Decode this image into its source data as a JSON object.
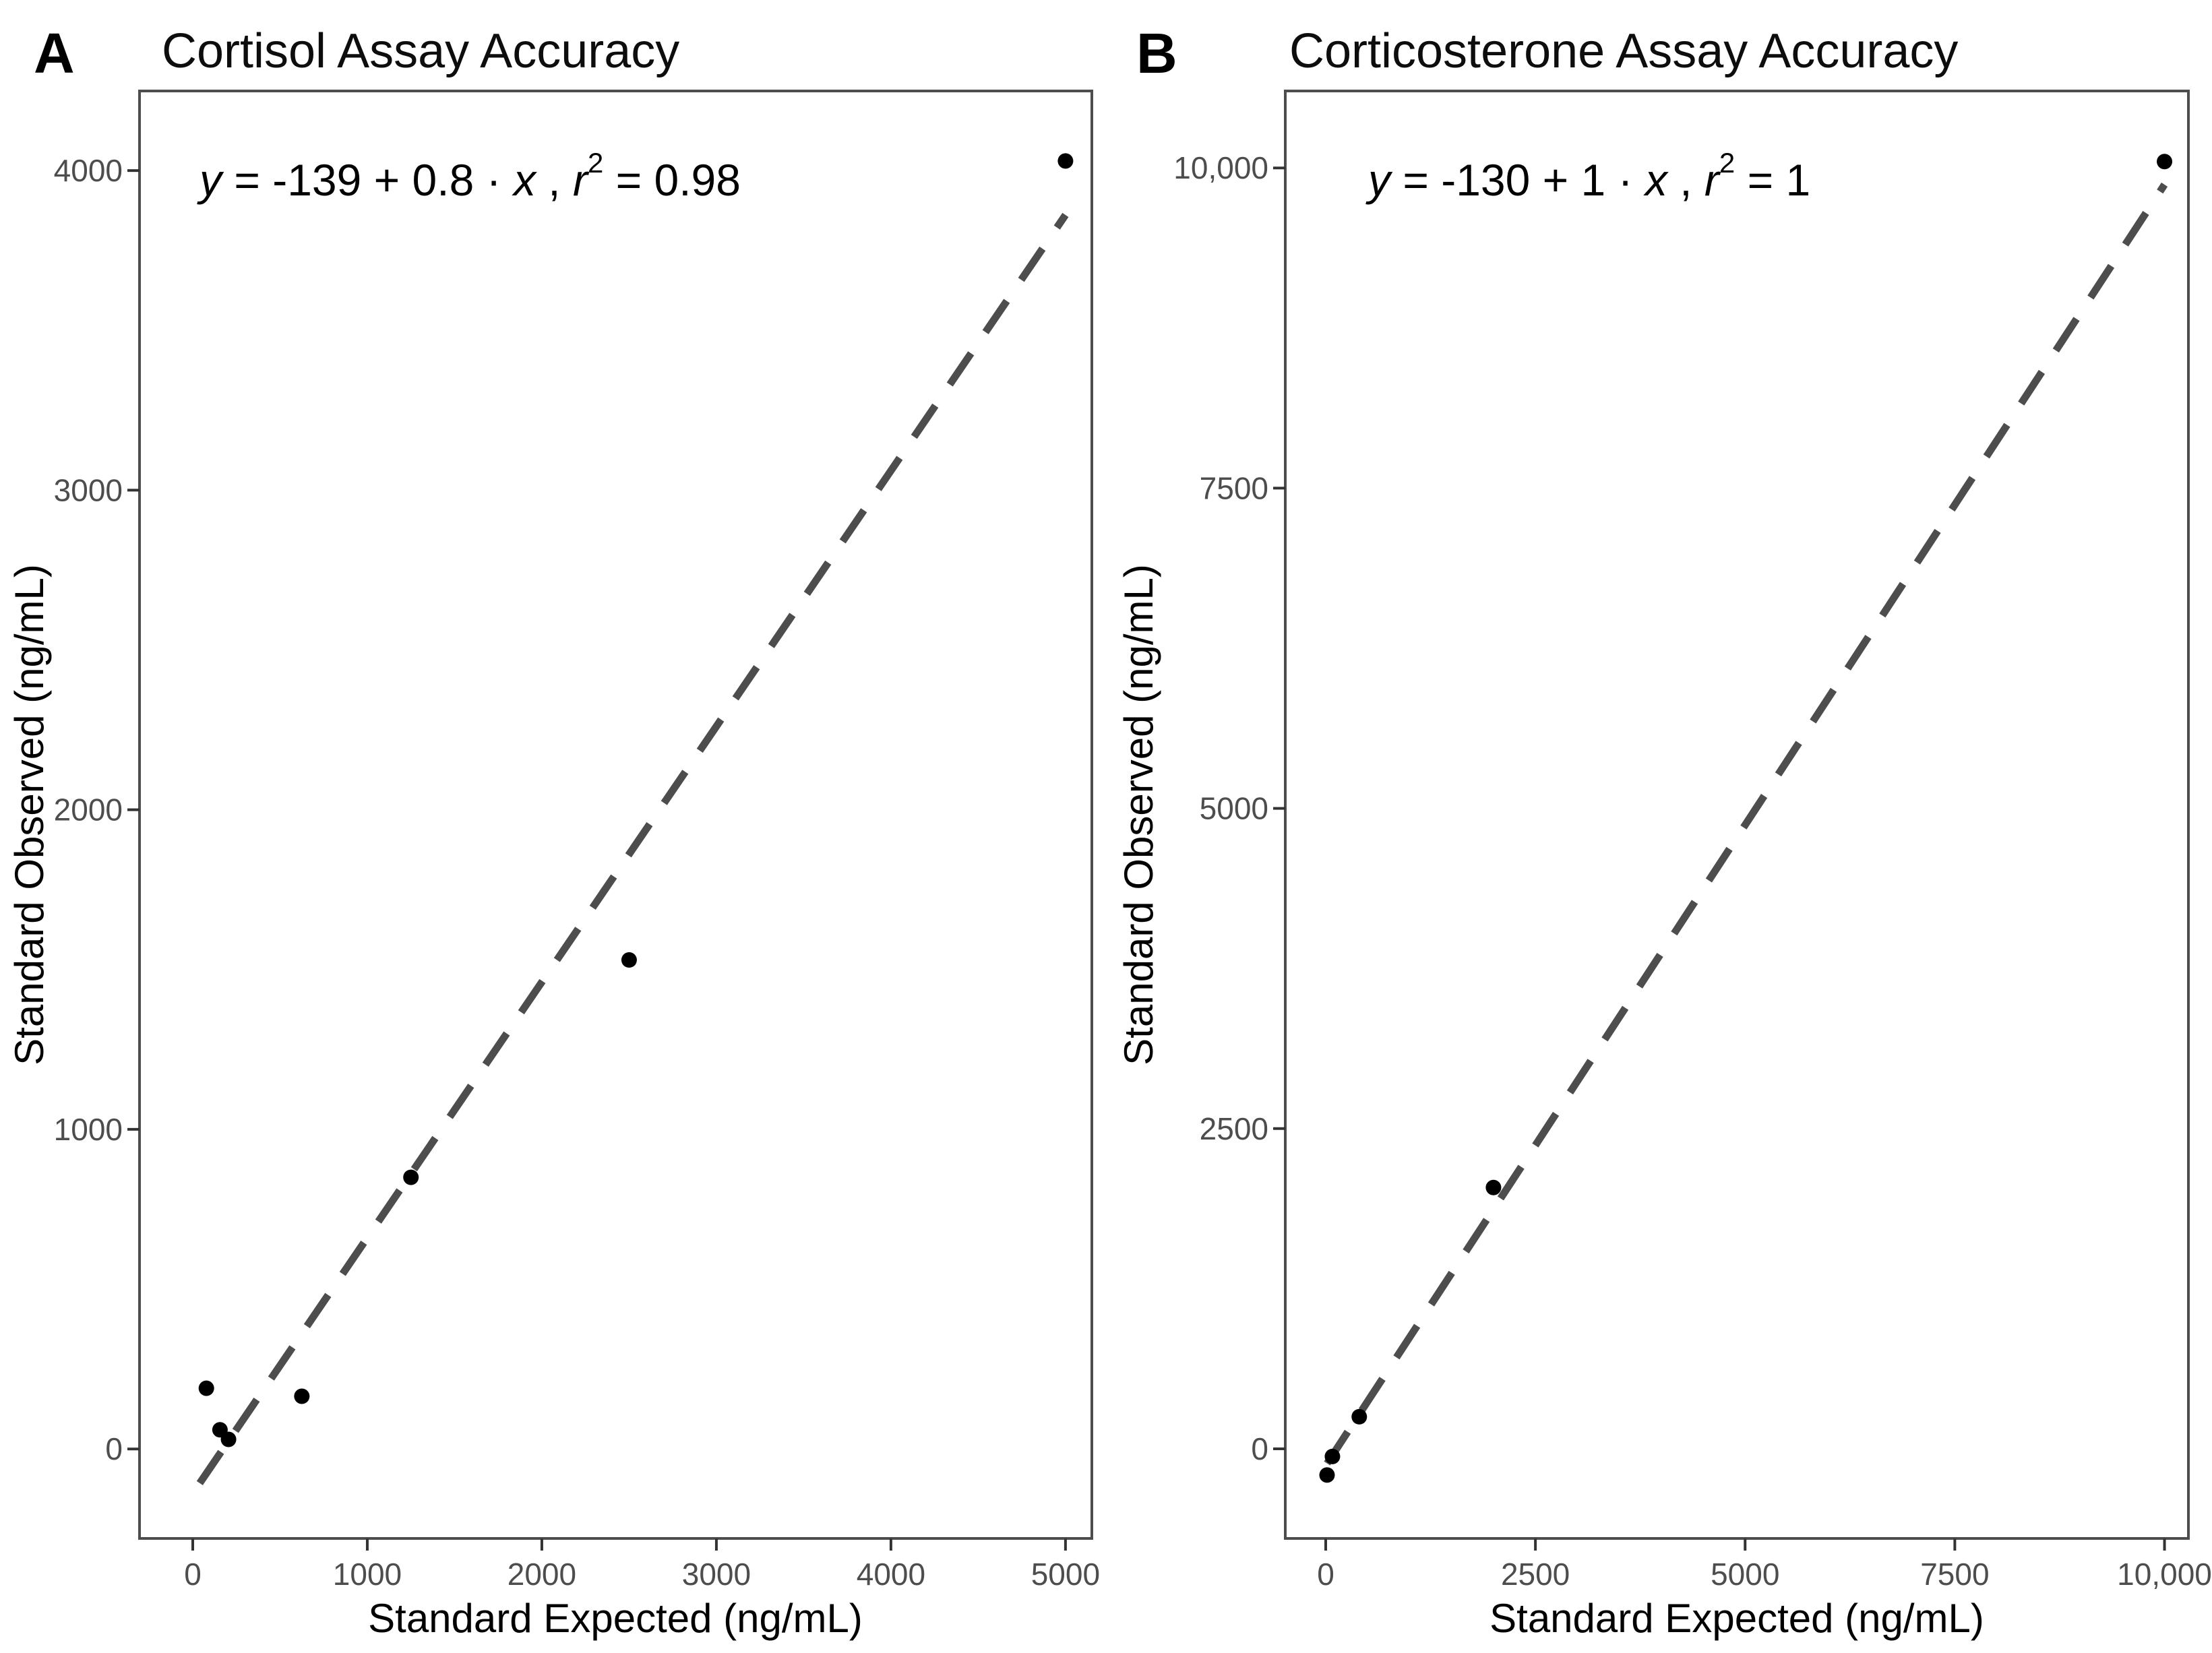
{
  "style": {
    "background": "#ffffff",
    "point_color": "#000000",
    "regression_line_color": "#4d4d4d",
    "panel_border_color": "#4d4d4d",
    "tick_mark_color": "#333333",
    "tick_label_color": "#4d4d4d",
    "text_color": "#000000"
  },
  "chart_data": [
    {
      "type": "scatter",
      "tag": "A",
      "title": "Cortisol Assay Accuracy",
      "xlabel": "Standard Expected (ng/mL)",
      "ylabel": "Standard Observed (ng/mL)",
      "equation": {
        "full_text": "y = -139 + 0.8 · x ,  r² = 0.98",
        "segments": [
          {
            "t": "y",
            "italic": true
          },
          {
            "t": " = -139 + 0.8 · "
          },
          {
            "t": "x",
            "italic": true
          },
          {
            "t": " ,  "
          },
          {
            "t": "r",
            "italic": true
          },
          {
            "t": "2",
            "sup": true
          },
          {
            "t": " = 0.98"
          }
        ]
      },
      "points": [
        {
          "x": 78,
          "y": 190
        },
        {
          "x": 156,
          "y": 60
        },
        {
          "x": 205,
          "y": 30
        },
        {
          "x": 625,
          "y": 165
        },
        {
          "x": 1250,
          "y": 850
        },
        {
          "x": 2500,
          "y": 1530
        },
        {
          "x": 5000,
          "y": 4030
        }
      ],
      "fit_line": {
        "intercept": -139,
        "slope": 0.8,
        "x_start": 40,
        "x_end": 5000,
        "style": "dashed"
      },
      "x_ticks": [
        {
          "v": 0,
          "label": "0"
        },
        {
          "v": 1000,
          "label": "1000"
        },
        {
          "v": 2000,
          "label": "2000"
        },
        {
          "v": 3000,
          "label": "3000"
        },
        {
          "v": 4000,
          "label": "4000"
        },
        {
          "v": 5000,
          "label": "5000"
        }
      ],
      "y_ticks": [
        {
          "v": 0,
          "label": "0"
        },
        {
          "v": 1000,
          "label": "1000"
        },
        {
          "v": 2000,
          "label": "2000"
        },
        {
          "v": 3000,
          "label": "3000"
        },
        {
          "v": 4000,
          "label": "4000"
        }
      ],
      "xlim": [
        -305,
        5151
      ],
      "ylim": [
        -280,
        4249
      ],
      "grid": false,
      "legend": "none"
    },
    {
      "type": "scatter",
      "tag": "B",
      "title": "Corticosterone Assay Accuracy",
      "xlabel": "Standard Expected (ng/mL)",
      "ylabel": "Standard Observed (ng/mL)",
      "equation": {
        "full_text": "y = -130 + 1 · x ,  r² = 1",
        "segments": [
          {
            "t": "y",
            "italic": true
          },
          {
            "t": " = -130 + 1 · "
          },
          {
            "t": "x",
            "italic": true
          },
          {
            "t": " ,  "
          },
          {
            "t": "r",
            "italic": true
          },
          {
            "t": "2",
            "sup": true
          },
          {
            "t": " = 1"
          }
        ]
      },
      "points": [
        {
          "x": 16,
          "y": -205
        },
        {
          "x": 80,
          "y": -60
        },
        {
          "x": 400,
          "y": 250
        },
        {
          "x": 2000,
          "y": 2040
        },
        {
          "x": 10000,
          "y": 10050
        }
      ],
      "fit_line": {
        "intercept": -130,
        "slope": 1,
        "x_start": 16,
        "x_end": 10000,
        "style": "dashed"
      },
      "x_ticks": [
        {
          "v": 0,
          "label": "0"
        },
        {
          "v": 2500,
          "label": "2500"
        },
        {
          "v": 5000,
          "label": "5000"
        },
        {
          "v": 7500,
          "label": "7500"
        },
        {
          "v": 10000,
          "label": "10,000"
        }
      ],
      "y_ticks": [
        {
          "v": 0,
          "label": "0"
        },
        {
          "v": 2500,
          "label": "2500"
        },
        {
          "v": 5000,
          "label": "5000"
        },
        {
          "v": 7500,
          "label": "7500"
        },
        {
          "v": 10000,
          "label": "10,000"
        }
      ],
      "xlim": [
        -482,
        10285
      ],
      "ylim": [
        -700,
        10601
      ],
      "grid": false,
      "legend": "none"
    }
  ]
}
